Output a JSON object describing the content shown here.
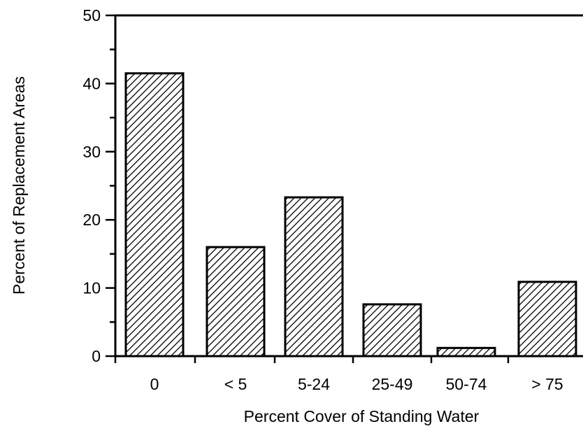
{
  "chart_data": {
    "type": "bar",
    "title": "",
    "xlabel": "Percent Cover of Standing Water",
    "ylabel": "Percent of Replacement Areas",
    "categories": [
      "0",
      "< 5",
      "5-24",
      "25-49",
      "50-74",
      "> 75"
    ],
    "values": [
      41.5,
      16,
      23.3,
      7.6,
      1.2,
      10.9
    ],
    "ylim": [
      0,
      50
    ],
    "yticks": [
      "0",
      "10",
      "20",
      "30",
      "40",
      "50"
    ],
    "grid": false,
    "legend": "none",
    "bar_fill": "diagonal-hatch",
    "colors": {
      "stroke": "#000000",
      "background": "#ffffff"
    }
  }
}
